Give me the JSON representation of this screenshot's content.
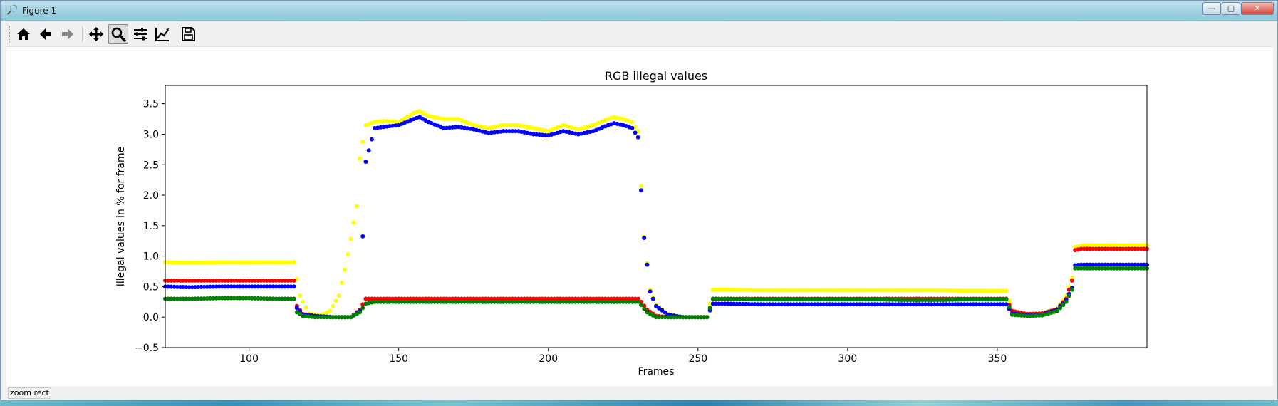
{
  "window": {
    "title": "Figure 1",
    "minimize": "—",
    "maximize": "□",
    "close": "✕"
  },
  "toolbar": {
    "icons": [
      "home-icon",
      "back-arrow-icon",
      "forward-arrow-icon",
      "pan-icon",
      "zoom-icon",
      "subplots-icon",
      "edit-axis-icon",
      "save-icon"
    ],
    "active": "zoom"
  },
  "status": {
    "text": "zoom rect"
  },
  "chart_data": {
    "type": "scatter",
    "title": "RGB illegal values",
    "xlabel": "Frames",
    "ylabel": "Illegal values in % for frame",
    "xlim": [
      72,
      400
    ],
    "ylim": [
      -0.5,
      3.8
    ],
    "xticks": [
      100,
      150,
      200,
      250,
      300,
      350
    ],
    "yticks": [
      -0.5,
      0.0,
      0.5,
      1.0,
      1.5,
      2.0,
      2.5,
      3.0,
      3.5
    ],
    "grid": false,
    "legend": "none",
    "series": [
      {
        "color": "#ffff00",
        "x": [
          72,
          80,
          90,
          100,
          110,
          115,
          117,
          120,
          124,
          127,
          130,
          132,
          134,
          136,
          137,
          139,
          142,
          145,
          150,
          155,
          157,
          160,
          165,
          170,
          175,
          180,
          185,
          190,
          195,
          200,
          205,
          210,
          215,
          220,
          222,
          225,
          228,
          230,
          231,
          232,
          234,
          236,
          240,
          245,
          250,
          253,
          255,
          260,
          270,
          280,
          290,
          300,
          310,
          320,
          330,
          340,
          350,
          353,
          355,
          360,
          365,
          370,
          373,
          375,
          376,
          378,
          380,
          390,
          400
        ],
        "y": [
          0.9,
          0.89,
          0.9,
          0.9,
          0.9,
          0.9,
          0.35,
          0.06,
          0.03,
          0.1,
          0.35,
          0.78,
          1.28,
          1.82,
          2.6,
          3.15,
          3.2,
          3.22,
          3.2,
          3.35,
          3.38,
          3.3,
          3.25,
          3.25,
          3.15,
          3.1,
          3.15,
          3.15,
          3.1,
          3.05,
          3.15,
          3.08,
          3.15,
          3.25,
          3.28,
          3.25,
          3.2,
          3.05,
          2.15,
          1.32,
          0.45,
          0.2,
          0.05,
          0.0,
          0.0,
          0.0,
          0.45,
          0.45,
          0.44,
          0.44,
          0.44,
          0.44,
          0.44,
          0.44,
          0.44,
          0.43,
          0.43,
          0.43,
          0.1,
          0.05,
          0.06,
          0.14,
          0.35,
          0.65,
          1.15,
          1.17,
          1.18,
          1.18,
          1.18
        ]
      },
      {
        "color": "#ff0000",
        "x": [
          72,
          80,
          90,
          100,
          110,
          115,
          116,
          118,
          122,
          128,
          134,
          137,
          139,
          142,
          150,
          160,
          170,
          180,
          190,
          200,
          210,
          220,
          225,
          230,
          231,
          233,
          236,
          240,
          245,
          250,
          253,
          255,
          260,
          270,
          280,
          290,
          300,
          310,
          320,
          330,
          340,
          350,
          353,
          355,
          360,
          365,
          370,
          373,
          375,
          376,
          378,
          380,
          390,
          400
        ],
        "y": [
          0.6,
          0.6,
          0.6,
          0.6,
          0.6,
          0.6,
          0.18,
          0.05,
          0.02,
          0.0,
          0.0,
          0.12,
          0.3,
          0.3,
          0.3,
          0.3,
          0.3,
          0.3,
          0.3,
          0.3,
          0.3,
          0.3,
          0.3,
          0.3,
          0.25,
          0.12,
          0.02,
          0.0,
          0.0,
          0.0,
          0.0,
          0.3,
          0.3,
          0.3,
          0.3,
          0.3,
          0.3,
          0.3,
          0.3,
          0.3,
          0.3,
          0.3,
          0.3,
          0.1,
          0.05,
          0.06,
          0.13,
          0.3,
          0.6,
          1.1,
          1.12,
          1.12,
          1.12,
          1.12
        ]
      },
      {
        "color": "#0000ff",
        "x": [
          72,
          80,
          90,
          100,
          110,
          115,
          116,
          118,
          122,
          128,
          134,
          137,
          139,
          142,
          145,
          150,
          155,
          157,
          160,
          165,
          170,
          175,
          180,
          185,
          190,
          195,
          200,
          205,
          210,
          215,
          220,
          222,
          225,
          228,
          230,
          231,
          232,
          234,
          236,
          240,
          245,
          250,
          253,
          255,
          260,
          270,
          280,
          290,
          300,
          310,
          320,
          330,
          340,
          350,
          353,
          355,
          360,
          365,
          370,
          373,
          375,
          376,
          378,
          380,
          390,
          400
        ],
        "y": [
          0.5,
          0.49,
          0.5,
          0.5,
          0.5,
          0.5,
          0.15,
          0.04,
          0.02,
          0.0,
          0.0,
          0.1,
          2.55,
          3.1,
          3.12,
          3.15,
          3.25,
          3.28,
          3.2,
          3.1,
          3.12,
          3.08,
          3.02,
          3.05,
          3.05,
          3.0,
          2.98,
          3.05,
          3.0,
          3.05,
          3.15,
          3.18,
          3.15,
          3.1,
          2.95,
          2.08,
          1.3,
          0.42,
          0.18,
          0.04,
          0.0,
          0.0,
          0.0,
          0.22,
          0.22,
          0.21,
          0.21,
          0.21,
          0.21,
          0.21,
          0.21,
          0.21,
          0.21,
          0.21,
          0.21,
          0.06,
          0.03,
          0.04,
          0.12,
          0.28,
          0.48,
          0.85,
          0.86,
          0.86,
          0.86,
          0.86
        ]
      },
      {
        "color": "#008000",
        "x": [
          72,
          80,
          90,
          100,
          110,
          115,
          116,
          118,
          122,
          128,
          134,
          137,
          139,
          142,
          150,
          160,
          170,
          180,
          190,
          200,
          210,
          220,
          225,
          230,
          231,
          233,
          236,
          240,
          245,
          250,
          253,
          255,
          260,
          270,
          280,
          290,
          300,
          310,
          320,
          330,
          340,
          350,
          353,
          355,
          360,
          365,
          370,
          373,
          375,
          376,
          378,
          380,
          390,
          400
        ],
        "y": [
          0.3,
          0.3,
          0.31,
          0.31,
          0.3,
          0.3,
          0.08,
          0.02,
          0.0,
          0.0,
          0.0,
          0.08,
          0.22,
          0.25,
          0.25,
          0.25,
          0.25,
          0.25,
          0.25,
          0.25,
          0.25,
          0.25,
          0.25,
          0.25,
          0.2,
          0.08,
          0.0,
          0.0,
          0.0,
          0.0,
          0.0,
          0.3,
          0.3,
          0.29,
          0.29,
          0.29,
          0.29,
          0.29,
          0.28,
          0.28,
          0.29,
          0.29,
          0.29,
          0.04,
          0.02,
          0.03,
          0.1,
          0.25,
          0.45,
          0.8,
          0.8,
          0.8,
          0.8,
          0.8
        ]
      }
    ]
  }
}
